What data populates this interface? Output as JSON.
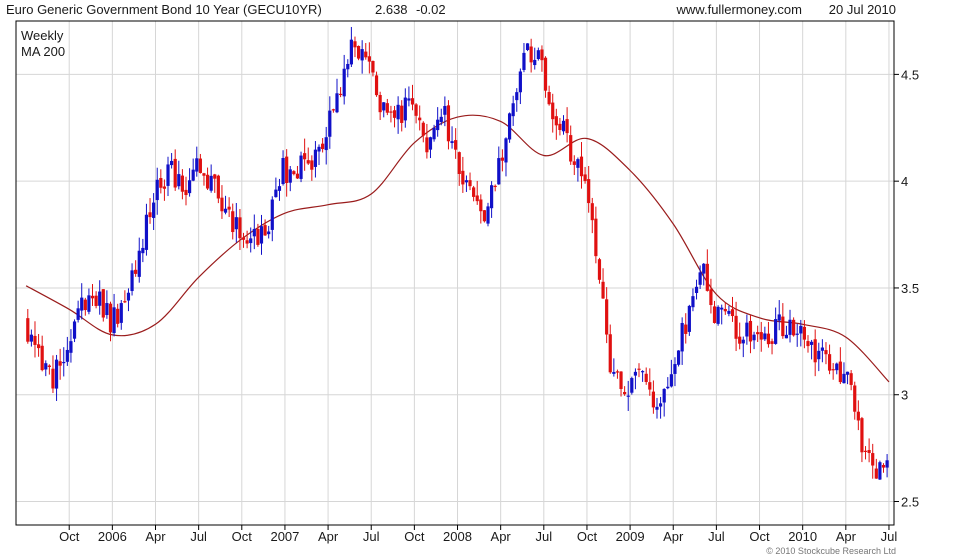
{
  "header": {
    "title": "Euro Generic Government Bond 10 Year (GECU10YR)",
    "last_price": "2.638",
    "change": "-0.02",
    "site": "www.fullermoney.com",
    "date": "20 Jul 2010"
  },
  "legend": {
    "weekly": "Weekly",
    "ma": "MA 200"
  },
  "copyright": "© 2010 Stockcube Research Ltd",
  "colors": {
    "up": "#1010c8",
    "down": "#e01010",
    "ma": "#9a1c1c",
    "grid": "#d6d6d6",
    "change": "#e01010"
  },
  "chart_data": {
    "type": "line",
    "title": "Euro Generic Government Bond 10 Year (GECU10YR)",
    "xlabel": "",
    "ylabel": "",
    "x_tick_labels": [
      "Oct",
      "2006",
      "Apr",
      "Jul",
      "Oct",
      "2007",
      "Apr",
      "Jul",
      "Oct",
      "2008",
      "Apr",
      "Jul",
      "Oct",
      "2009",
      "Apr",
      "Jul",
      "Oct",
      "2010",
      "Apr",
      "Jul"
    ],
    "y_ticks": [
      "2.5",
      "3",
      "3.5",
      "4",
      "4.5"
    ],
    "ylim": [
      2.39,
      4.75
    ],
    "grid": true,
    "legend_position": "top-left",
    "series": [
      {
        "name": "Weekly",
        "style": "OHLC bars (blue up, red down)",
        "points": [
          [
            "2005-07",
            3.35
          ],
          [
            "2005-08",
            3.22
          ],
          [
            "2005-09",
            3.08
          ],
          [
            "2005-10",
            3.15
          ],
          [
            "2005-11",
            3.45
          ],
          [
            "2005-12",
            3.48
          ],
          [
            "2006-01",
            3.32
          ],
          [
            "2006-02",
            3.45
          ],
          [
            "2006-03",
            3.68
          ],
          [
            "2006-04",
            3.92
          ],
          [
            "2006-05",
            4.05
          ],
          [
            "2006-06",
            3.95
          ],
          [
            "2006-07",
            4.05
          ],
          [
            "2006-08",
            3.98
          ],
          [
            "2006-09",
            3.85
          ],
          [
            "2006-10",
            3.75
          ],
          [
            "2006-11",
            3.72
          ],
          [
            "2006-12",
            3.8
          ],
          [
            "2007-01",
            4.05
          ],
          [
            "2007-02",
            4.08
          ],
          [
            "2007-03",
            4.1
          ],
          [
            "2007-04",
            4.22
          ],
          [
            "2007-05",
            4.45
          ],
          [
            "2007-06",
            4.65
          ],
          [
            "2007-07",
            4.52
          ],
          [
            "2007-08",
            4.35
          ],
          [
            "2007-09",
            4.3
          ],
          [
            "2007-10",
            4.38
          ],
          [
            "2007-11",
            4.2
          ],
          [
            "2007-12",
            4.35
          ],
          [
            "2008-01",
            4.1
          ],
          [
            "2008-02",
            3.95
          ],
          [
            "2008-03",
            3.82
          ],
          [
            "2008-04",
            4.05
          ],
          [
            "2008-05",
            4.35
          ],
          [
            "2008-06",
            4.62
          ],
          [
            "2008-07",
            4.55
          ],
          [
            "2008-08",
            4.28
          ],
          [
            "2008-09",
            4.15
          ],
          [
            "2008-10",
            4.05
          ],
          [
            "2008-11",
            3.55
          ],
          [
            "2008-12",
            3.05
          ],
          [
            "2009-01",
            3.05
          ],
          [
            "2009-02",
            3.1
          ],
          [
            "2009-03",
            2.98
          ],
          [
            "2009-04",
            3.12
          ],
          [
            "2009-05",
            3.35
          ],
          [
            "2009-06",
            3.62
          ],
          [
            "2009-07",
            3.35
          ],
          [
            "2009-08",
            3.38
          ],
          [
            "2009-09",
            3.28
          ],
          [
            "2009-10",
            3.25
          ],
          [
            "2009-11",
            3.3
          ],
          [
            "2009-12",
            3.35
          ],
          [
            "2010-01",
            3.3
          ],
          [
            "2010-02",
            3.2
          ],
          [
            "2010-03",
            3.15
          ],
          [
            "2010-04",
            3.12
          ],
          [
            "2010-05",
            2.85
          ],
          [
            "2010-06",
            2.62
          ],
          [
            "2010-07",
            2.64
          ]
        ]
      },
      {
        "name": "MA 200",
        "style": "line",
        "points": [
          [
            "2005-07",
            3.51
          ],
          [
            "2005-10",
            3.4
          ],
          [
            "2006-01",
            3.28
          ],
          [
            "2006-04",
            3.33
          ],
          [
            "2006-07",
            3.55
          ],
          [
            "2006-10",
            3.73
          ],
          [
            "2007-01",
            3.85
          ],
          [
            "2007-04",
            3.89
          ],
          [
            "2007-07",
            3.94
          ],
          [
            "2007-10",
            4.18
          ],
          [
            "2008-01",
            4.3
          ],
          [
            "2008-04",
            4.28
          ],
          [
            "2008-07",
            4.12
          ],
          [
            "2008-10",
            4.2
          ],
          [
            "2009-01",
            4.05
          ],
          [
            "2009-04",
            3.8
          ],
          [
            "2009-07",
            3.47
          ],
          [
            "2009-10",
            3.36
          ],
          [
            "2010-01",
            3.33
          ],
          [
            "2010-04",
            3.27
          ],
          [
            "2010-07",
            3.06
          ]
        ]
      }
    ]
  }
}
